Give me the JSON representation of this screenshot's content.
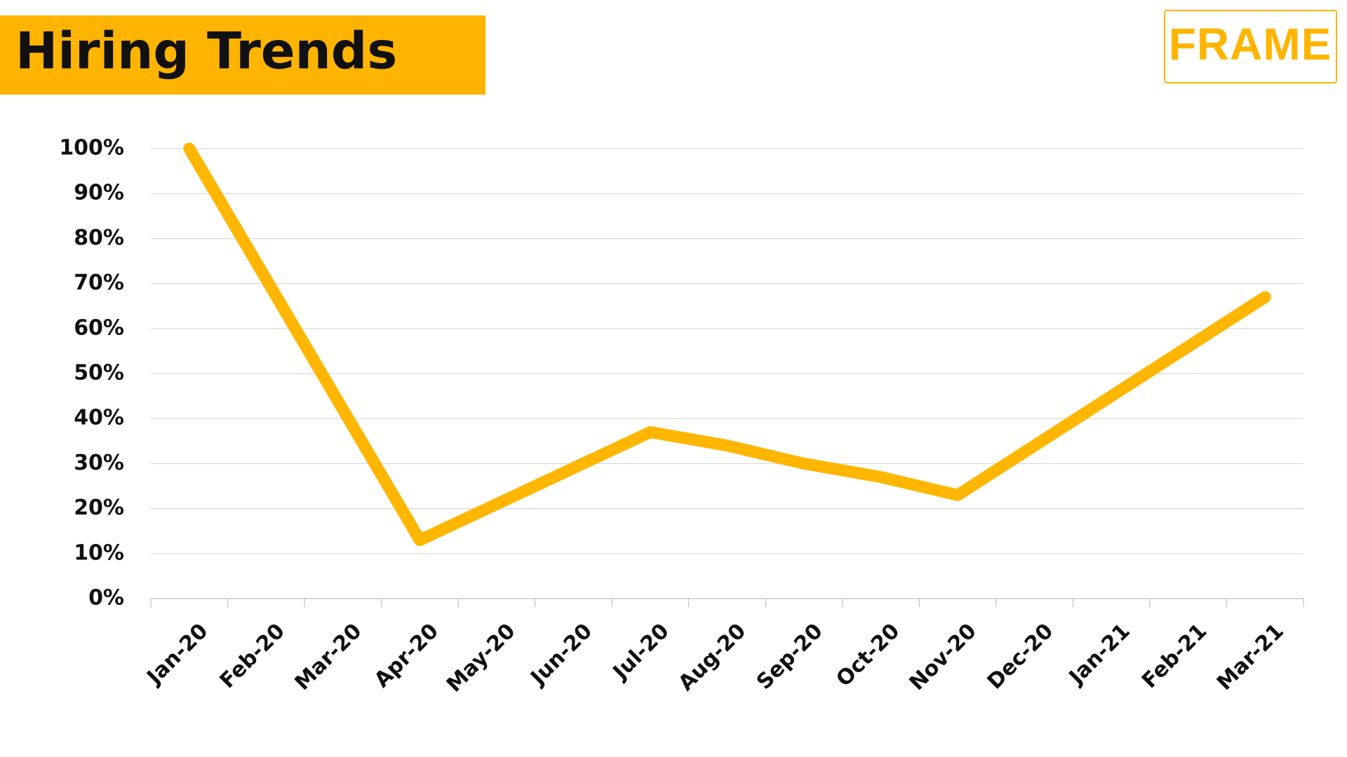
{
  "logo": "FRAME",
  "chart_data": {
    "type": "line",
    "title": "Hiring Trends",
    "categories": [
      "Jan-20",
      "Feb-20",
      "Mar-20",
      "Apr-20",
      "May-20",
      "Jun-20",
      "Jul-20",
      "Aug-20",
      "Sep-20",
      "Oct-20",
      "Nov-20",
      "Dec-20",
      "Jan-21",
      "Feb-21",
      "Mar-21"
    ],
    "values": [
      100,
      71,
      42,
      13,
      21,
      29,
      37,
      34,
      30,
      27,
      23,
      34,
      45,
      56,
      67
    ],
    "color": "#ffb600",
    "ylim": [
      0,
      100
    ],
    "yticks": [
      {
        "value": 0,
        "label": "0%"
      },
      {
        "value": 10,
        "label": "10%"
      },
      {
        "value": 20,
        "label": "20%"
      },
      {
        "value": 30,
        "label": "30%"
      },
      {
        "value": 40,
        "label": "40%"
      },
      {
        "value": 50,
        "label": "50%"
      },
      {
        "value": 60,
        "label": "60%"
      },
      {
        "value": 70,
        "label": "70%"
      },
      {
        "value": 80,
        "label": "80%"
      },
      {
        "value": 90,
        "label": "90%"
      },
      {
        "value": 100,
        "label": "100%"
      }
    ],
    "grid": true
  }
}
